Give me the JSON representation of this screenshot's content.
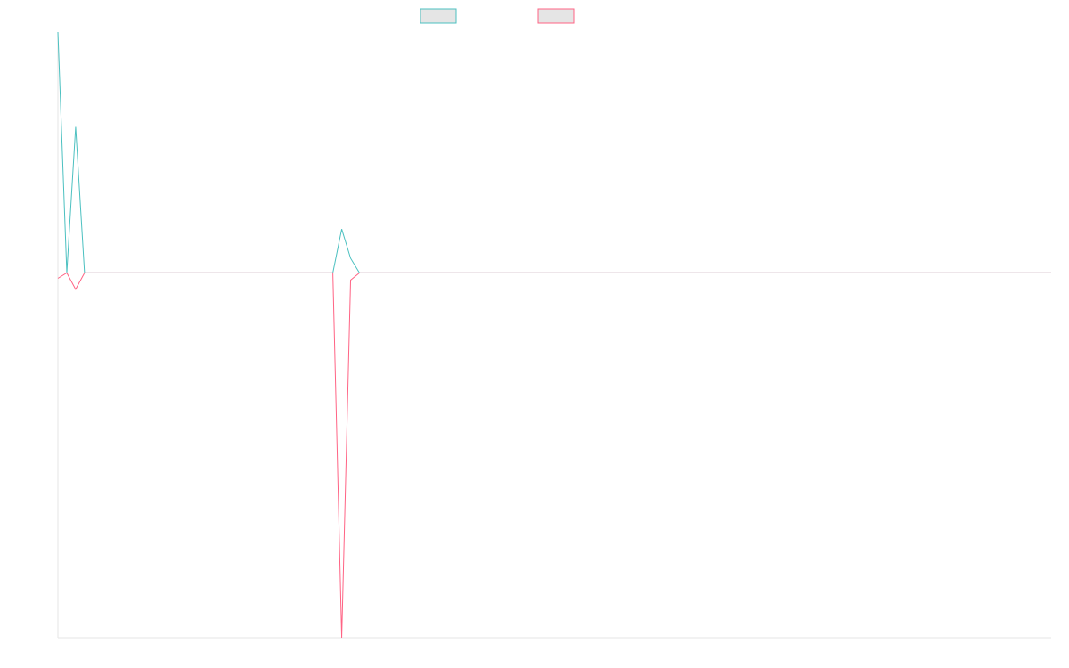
{
  "chart_data": {
    "type": "line",
    "title": "",
    "xlabel": "",
    "ylabel": "",
    "grid": false,
    "legend": "top-center",
    "x": [
      0,
      1,
      2,
      3,
      4,
      5,
      6,
      7,
      8,
      9,
      10,
      11,
      12,
      13,
      14,
      15,
      16,
      17,
      18,
      19,
      20,
      21,
      22,
      23,
      24,
      25,
      26,
      27,
      28,
      29,
      30,
      31,
      32,
      33,
      34,
      35,
      36,
      37,
      38,
      39,
      40,
      41,
      42,
      43,
      44,
      45,
      46,
      47,
      48,
      49,
      50,
      51,
      52,
      53,
      54,
      55,
      56,
      57,
      58,
      59,
      60,
      61,
      62,
      63,
      64,
      65,
      66,
      67,
      68,
      69,
      70,
      71,
      72,
      73,
      74,
      75,
      76,
      77,
      78,
      79,
      80,
      81,
      82,
      83,
      84,
      85,
      86,
      87,
      88,
      89,
      90,
      91,
      92,
      93,
      94,
      95,
      96,
      97,
      98,
      99,
      100,
      101,
      102,
      103,
      104,
      105,
      106,
      107,
      108,
      109,
      110,
      111,
      112
    ],
    "ylim": [
      -100,
      66
    ],
    "xlim": [
      0,
      112
    ],
    "series": [
      {
        "name": "",
        "color": "#4bc0c0",
        "values": [
          66,
          0,
          40,
          0,
          0,
          0,
          0,
          0,
          0,
          0,
          0,
          0,
          0,
          0,
          0,
          0,
          0,
          0,
          0,
          0,
          0,
          0,
          0,
          0,
          0,
          0,
          0,
          0,
          0,
          0,
          0,
          0,
          12,
          4,
          0,
          0,
          0,
          0,
          0,
          0,
          0,
          0,
          0,
          0,
          0,
          0,
          0,
          0,
          0,
          0,
          0,
          0,
          0,
          0,
          0,
          0,
          0,
          0,
          0,
          0,
          0,
          0,
          0,
          0,
          0,
          0,
          0,
          0,
          0,
          0,
          0,
          0,
          0,
          0,
          0,
          0,
          0,
          0,
          0,
          0,
          0,
          0,
          0,
          0,
          0,
          0,
          0,
          0,
          0,
          0,
          0,
          0,
          0,
          0,
          0,
          0,
          0,
          0,
          0,
          0,
          0,
          0,
          0,
          0,
          0,
          0,
          0,
          0,
          0,
          0,
          0,
          0,
          0
        ]
      },
      {
        "name": "",
        "color": "#ff6384",
        "values": [
          -1.5,
          0,
          -4.5,
          0,
          0,
          0,
          0,
          0,
          0,
          0,
          0,
          0,
          0,
          0,
          0,
          0,
          0,
          0,
          0,
          0,
          0,
          0,
          0,
          0,
          0,
          0,
          0,
          0,
          0,
          0,
          0,
          0,
          -100,
          -2,
          0,
          0,
          0,
          0,
          0,
          0,
          0,
          0,
          0,
          0,
          0,
          0,
          0,
          0,
          0,
          0,
          0,
          0,
          0,
          0,
          0,
          0,
          0,
          0,
          0,
          0,
          0,
          0,
          0,
          0,
          0,
          0,
          0,
          0,
          0,
          0,
          0,
          0,
          0,
          0,
          0,
          0,
          0,
          0,
          0,
          0,
          0,
          0,
          0,
          0,
          0,
          0,
          0,
          0,
          0,
          0,
          0,
          0,
          0,
          0,
          0,
          0,
          0,
          0,
          0,
          0,
          0,
          0,
          0,
          0,
          0,
          0,
          0,
          0,
          0,
          0,
          0,
          0,
          0
        ]
      }
    ],
    "legend_fill": "#e5e5e5",
    "axis_color": "#e5e5e5"
  }
}
